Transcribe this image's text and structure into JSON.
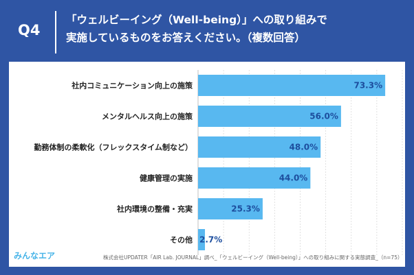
{
  "header": {
    "question_number": "Q4",
    "title_line1": "「ウェルビーイング（Well-being）」への取り組みで",
    "title_line2": "実施しているものをお答えください。（複数回答）"
  },
  "chart_data": {
    "type": "bar",
    "orientation": "horizontal",
    "categories": [
      "社内コミュニケーション向上の施策",
      "メンタルヘルス向上の施策",
      "勤務体制の柔軟化（フレックスタイム制など）",
      "健康管理の実施",
      "社内環境の整備・充実",
      "その他"
    ],
    "values": [
      73.3,
      56.0,
      48.0,
      44.0,
      25.3,
      2.7
    ],
    "value_labels": [
      "73.3%",
      "56.0%",
      "48.0%",
      "44.0%",
      "25.3%",
      "2.7%"
    ],
    "xlim": [
      0,
      80
    ],
    "grid": "vertical-dashed",
    "bar_color": "#58b8f0"
  },
  "footer": {
    "logo_text": "みんなエア",
    "source": "株式会社UPDATER「AIR Lab. JOURNAL」調べ_「ウェルビーイング（Well-being）」への取り組みに関する実態調査_（n=75）"
  }
}
